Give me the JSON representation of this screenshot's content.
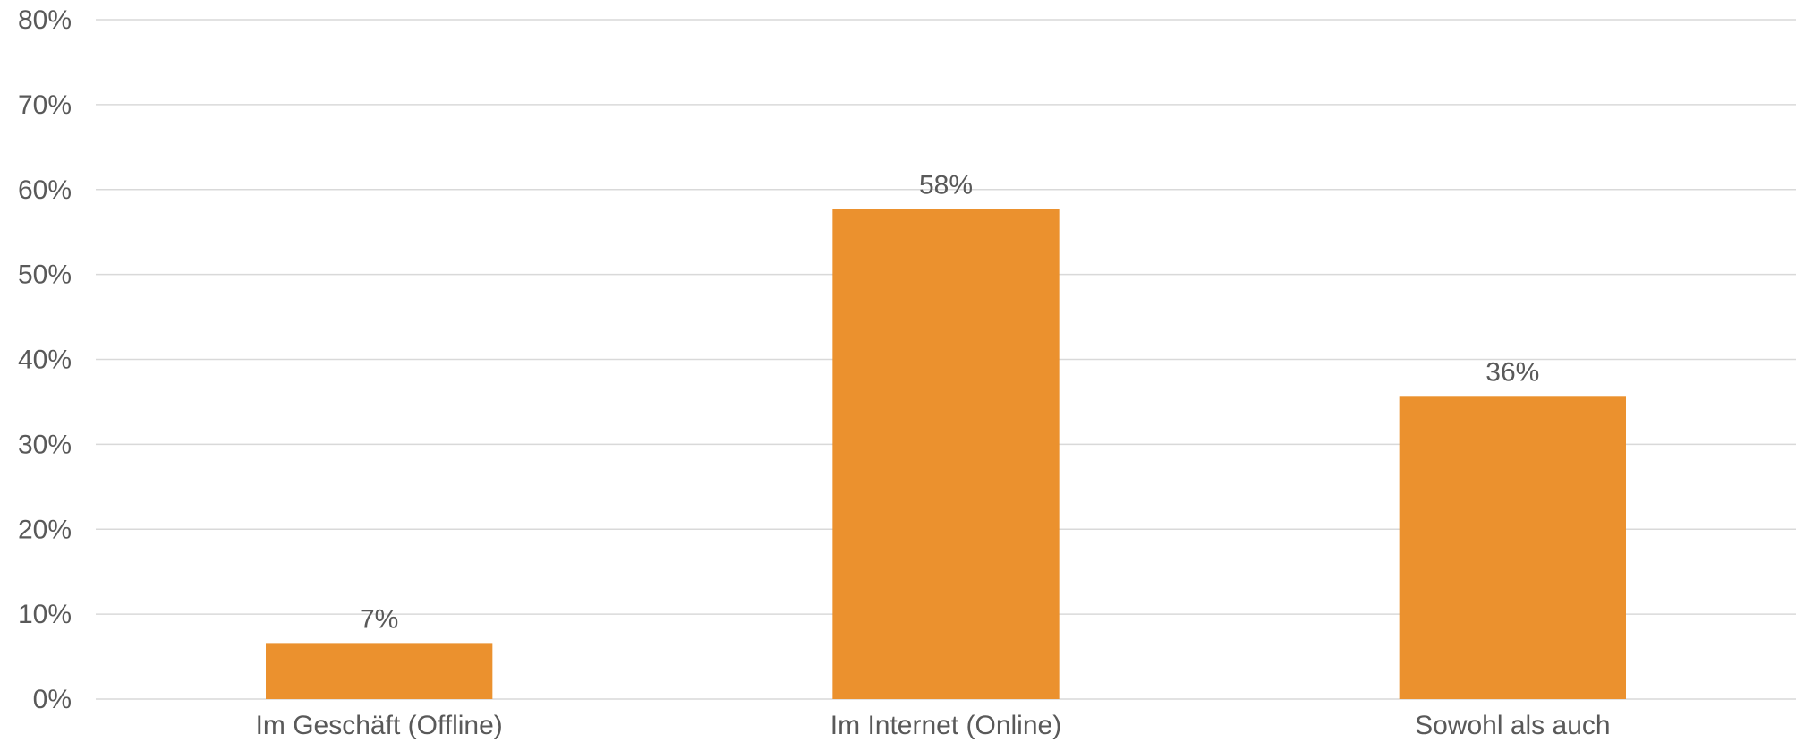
{
  "chart_data": {
    "type": "bar",
    "categories": [
      "Im Geschäft (Offline)",
      "Im Internet (Online)",
      "Sowohl als auch"
    ],
    "values": [
      6.6,
      57.7,
      35.7
    ],
    "data_labels": [
      "7%",
      "58%",
      "36%"
    ],
    "title": "",
    "xlabel": "",
    "ylabel": "",
    "ylim": [
      0,
      80
    ],
    "yticks": [
      0,
      10,
      20,
      30,
      40,
      50,
      60,
      70,
      80
    ],
    "ytick_labels": [
      "0%",
      "10%",
      "20%",
      "30%",
      "40%",
      "50%",
      "60%",
      "70%",
      "80%"
    ],
    "grid": true,
    "legend": "none",
    "colors": {
      "bar": "#EB912E",
      "grid": "#D9D9D9",
      "text": "#595959"
    }
  }
}
